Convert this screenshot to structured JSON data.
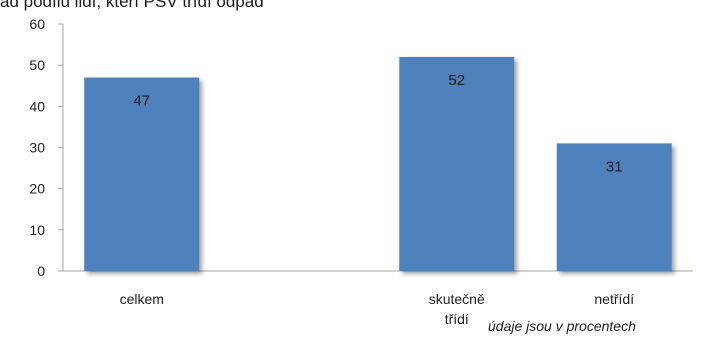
{
  "chart_data": {
    "type": "bar",
    "title": "ád podílu lidí, kteří PSV třídí odpad",
    "categories": [
      [
        "celkem"
      ],
      [],
      [
        "skutečně",
        "třídí"
      ],
      [
        "netřídí"
      ]
    ],
    "values": [
      47,
      null,
      52,
      31
    ],
    "data_labels": [
      "47",
      "",
      "52",
      "31"
    ],
    "ylim": [
      0,
      60
    ],
    "yticks": [
      0,
      10,
      20,
      30,
      40,
      50,
      60
    ],
    "grid": false,
    "bar_color": "#4f81bd",
    "note": "údaje jsou v procentech"
  }
}
